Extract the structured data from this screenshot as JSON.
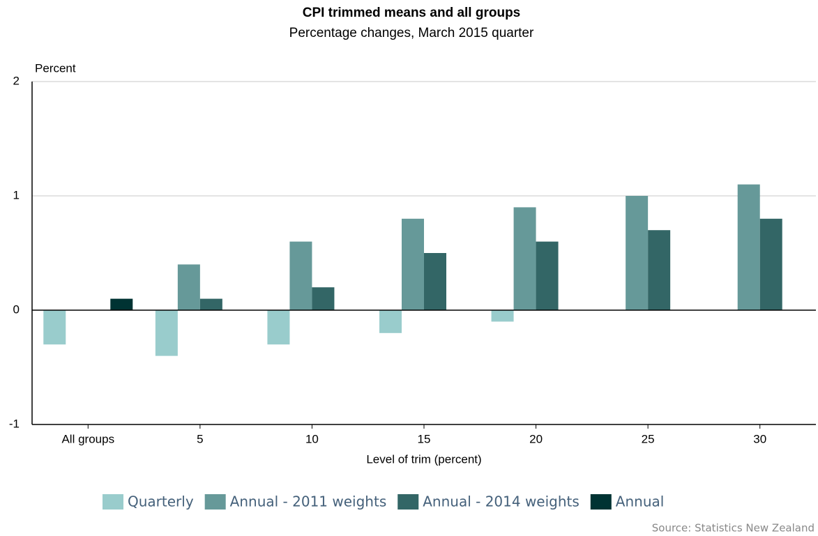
{
  "chart_data": {
    "type": "bar",
    "title": "CPI trimmed means and all groups",
    "subtitle": "Percentage changes, March 2015 quarter",
    "y_label": "Percent",
    "x_label": "Level of trim (percent)",
    "source": "Source: Statistics New Zealand",
    "categories": [
      "All groups",
      "5",
      "10",
      "15",
      "20",
      "25",
      "30"
    ],
    "series": [
      {
        "name": "Quarterly",
        "color": "#99cccc",
        "values": [
          -0.3,
          -0.4,
          -0.3,
          -0.2,
          -0.1,
          null,
          null
        ]
      },
      {
        "name": "Annual - 2011 weights",
        "color": "#669999",
        "values": [
          null,
          0.4,
          0.6,
          0.8,
          0.9,
          1.0,
          1.1
        ]
      },
      {
        "name": "Annual - 2014 weights",
        "color": "#336666",
        "values": [
          null,
          0.1,
          0.2,
          0.5,
          0.6,
          0.7,
          0.8
        ]
      },
      {
        "name": "Annual",
        "color": "#003333",
        "values": [
          0.1,
          null,
          null,
          null,
          null,
          null,
          null
        ]
      }
    ],
    "ylim": [
      -1,
      2
    ],
    "yticks": [
      -1,
      0,
      1,
      2
    ],
    "grid": true,
    "legend": "bottom"
  }
}
